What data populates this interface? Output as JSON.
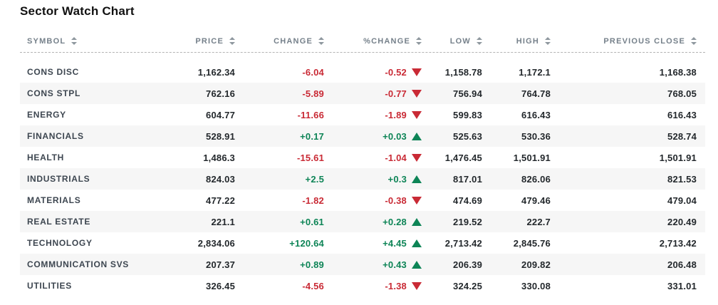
{
  "title": "Sector Watch Chart",
  "colors": {
    "positive": "#0d8456",
    "negative": "#c92a35",
    "header_text": "#75808a",
    "symbol_text": "#3d4650",
    "number_text": "#23282c",
    "row_stripe": "#f6f6f6",
    "dashed_divider": "#b3b3b3"
  },
  "icons": {
    "sort": "sort-arrows-icon",
    "up": "triangle-up-icon",
    "down": "triangle-down-icon"
  },
  "table": {
    "columns": [
      {
        "key": "symbol",
        "label": "SYMBOL",
        "align": "left"
      },
      {
        "key": "price",
        "label": "PRICE",
        "align": "right"
      },
      {
        "key": "change",
        "label": "CHANGE",
        "align": "right"
      },
      {
        "key": "pct_change",
        "label": "%CHANGE",
        "align": "right"
      },
      {
        "key": "low",
        "label": "LOW",
        "align": "right"
      },
      {
        "key": "high",
        "label": "HIGH",
        "align": "right"
      },
      {
        "key": "prev_close",
        "label": "PREVIOUS CLOSE",
        "align": "right"
      }
    ],
    "rows": [
      {
        "symbol": "CONS DISC",
        "price": "1,162.34",
        "change": "-6.04",
        "pct_change": "-0.52",
        "direction": "down",
        "low": "1,158.78",
        "high": "1,172.1",
        "prev_close": "1,168.38"
      },
      {
        "symbol": "CONS STPL",
        "price": "762.16",
        "change": "-5.89",
        "pct_change": "-0.77",
        "direction": "down",
        "low": "756.94",
        "high": "764.78",
        "prev_close": "768.05"
      },
      {
        "symbol": "ENERGY",
        "price": "604.77",
        "change": "-11.66",
        "pct_change": "-1.89",
        "direction": "down",
        "low": "599.83",
        "high": "616.43",
        "prev_close": "616.43"
      },
      {
        "symbol": "FINANCIALS",
        "price": "528.91",
        "change": "+0.17",
        "pct_change": "+0.03",
        "direction": "up",
        "low": "525.63",
        "high": "530.36",
        "prev_close": "528.74"
      },
      {
        "symbol": "HEALTH",
        "price": "1,486.3",
        "change": "-15.61",
        "pct_change": "-1.04",
        "direction": "down",
        "low": "1,476.45",
        "high": "1,501.91",
        "prev_close": "1,501.91"
      },
      {
        "symbol": "INDUSTRIALS",
        "price": "824.03",
        "change": "+2.5",
        "pct_change": "+0.3",
        "direction": "up",
        "low": "817.01",
        "high": "826.06",
        "prev_close": "821.53"
      },
      {
        "symbol": "MATERIALS",
        "price": "477.22",
        "change": "-1.82",
        "pct_change": "-0.38",
        "direction": "down",
        "low": "474.69",
        "high": "479.46",
        "prev_close": "479.04"
      },
      {
        "symbol": "REAL ESTATE",
        "price": "221.1",
        "change": "+0.61",
        "pct_change": "+0.28",
        "direction": "up",
        "low": "219.52",
        "high": "222.7",
        "prev_close": "220.49"
      },
      {
        "symbol": "TECHNOLOGY",
        "price": "2,834.06",
        "change": "+120.64",
        "pct_change": "+4.45",
        "direction": "up",
        "low": "2,713.42",
        "high": "2,845.76",
        "prev_close": "2,713.42"
      },
      {
        "symbol": "COMMUNICATION SVS",
        "price": "207.37",
        "change": "+0.89",
        "pct_change": "+0.43",
        "direction": "up",
        "low": "206.39",
        "high": "209.82",
        "prev_close": "206.48"
      },
      {
        "symbol": "UTILITIES",
        "price": "326.45",
        "change": "-4.56",
        "pct_change": "-1.38",
        "direction": "down",
        "low": "324.25",
        "high": "330.08",
        "prev_close": "331.01"
      }
    ]
  }
}
